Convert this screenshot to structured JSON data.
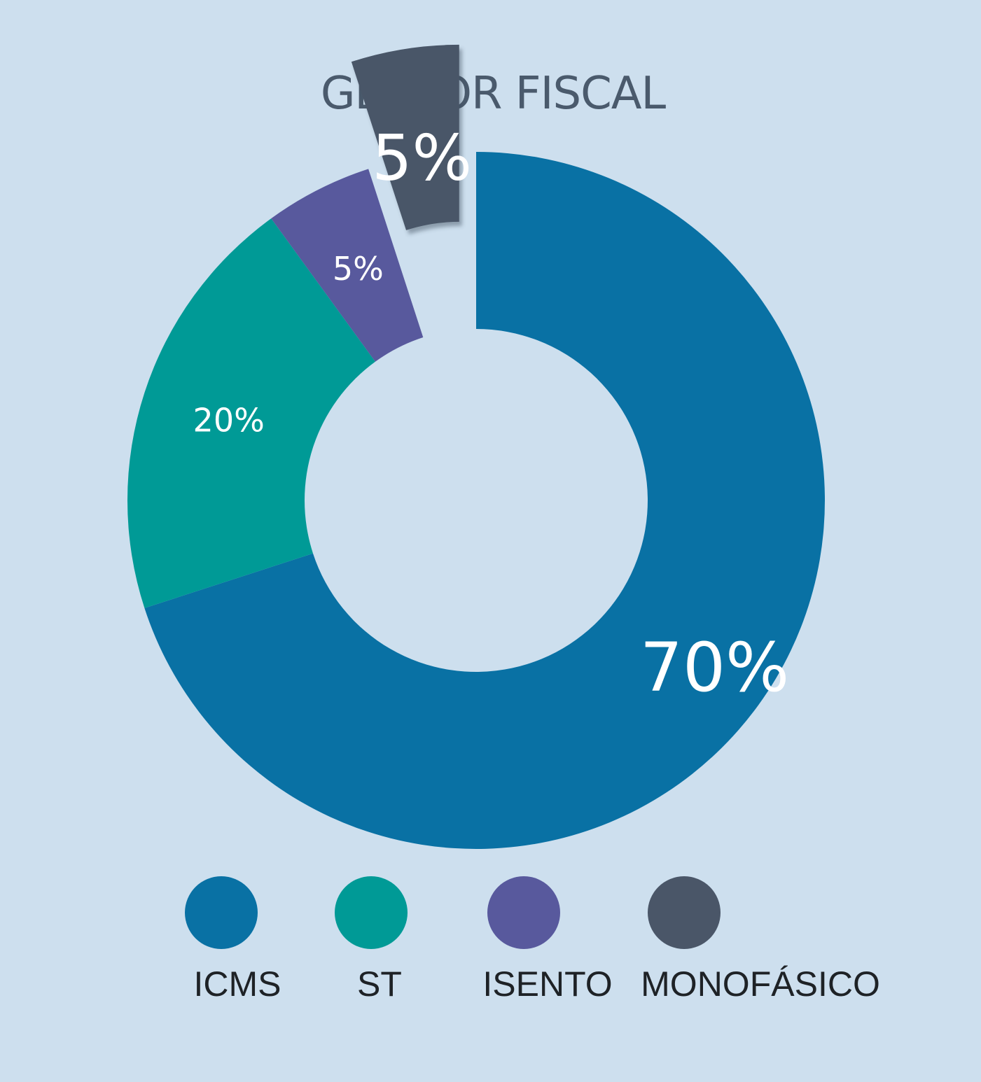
{
  "chart_data": {
    "type": "pie",
    "title": "GESTOR FISCAL",
    "donut": true,
    "categories": [
      "ICMS",
      "ST",
      "ISENTO",
      "MONOFÁSICO"
    ],
    "values": [
      70,
      20,
      5,
      5
    ],
    "labels": [
      "70%",
      "20%",
      "5%",
      "5%"
    ],
    "colors": [
      "#0971a4",
      "#009a96",
      "#58599d",
      "#4a5668"
    ],
    "exploded": [
      "MONOFÁSICO"
    ],
    "legend": "bottom"
  }
}
